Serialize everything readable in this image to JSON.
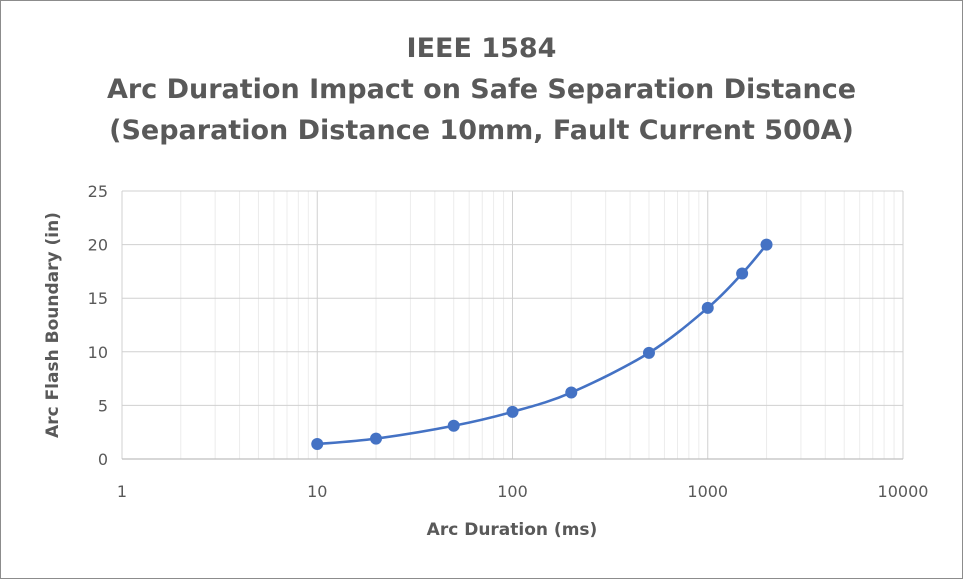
{
  "chart_data": {
    "type": "scatter",
    "title_lines": [
      "IEEE 1584",
      "Arc Duration Impact on Safe Separation Distance",
      "(Separation Distance 10mm, Fault Current 500A)"
    ],
    "xlabel": "Arc Duration  (ms)",
    "ylabel": "Arc Flash Boundary (in)",
    "x_scale": "log",
    "xlim": [
      1,
      10000
    ],
    "ylim": [
      0,
      25
    ],
    "x_ticks": [
      1,
      10,
      100,
      1000,
      10000
    ],
    "y_ticks": [
      0,
      5,
      10,
      15,
      20,
      25
    ],
    "grid": true,
    "legend": "none",
    "series": [
      {
        "color": "#4472C4",
        "smooth": true,
        "markers": true,
        "x": [
          10,
          20,
          50,
          100,
          200,
          500,
          1000,
          1500,
          2000
        ],
        "y": [
          1.4,
          1.9,
          3.1,
          4.4,
          6.2,
          9.9,
          14.1,
          17.3,
          20.0
        ]
      }
    ]
  }
}
